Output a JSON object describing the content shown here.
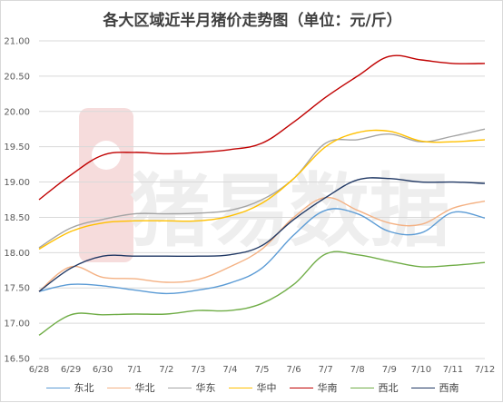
{
  "chart_data": {
    "type": "line",
    "title": "各大区域近半月猪价走势图（单位：元/斤）",
    "watermark": "猪易数据",
    "categories": [
      "6/28",
      "6/29",
      "6/30",
      "7/1",
      "7/2",
      "7/3",
      "7/4",
      "7/5",
      "7/6",
      "7/7",
      "7/8",
      "7/9",
      "7/10",
      "7/11",
      "7/12"
    ],
    "ylim": [
      16.5,
      21.0
    ],
    "yticks": [
      "16.50",
      "17.00",
      "17.50",
      "18.00",
      "18.50",
      "19.00",
      "19.50",
      "20.00",
      "20.50",
      "21.00"
    ],
    "grid": true,
    "legend_position": "bottom",
    "series": [
      {
        "name": "东北",
        "color": "#5b9bd5",
        "values": [
          17.45,
          17.55,
          17.53,
          17.47,
          17.42,
          17.47,
          17.57,
          17.78,
          18.25,
          18.6,
          18.55,
          18.3,
          18.28,
          18.57,
          18.49
        ]
      },
      {
        "name": "华北",
        "color": "#f4b183",
        "values": [
          17.45,
          17.8,
          17.65,
          17.63,
          17.58,
          17.62,
          17.8,
          18.05,
          18.5,
          18.78,
          18.6,
          18.42,
          18.4,
          18.63,
          18.73
        ]
      },
      {
        "name": "华东",
        "color": "#a5a5a5",
        "values": [
          18.07,
          18.35,
          18.47,
          18.55,
          18.55,
          18.56,
          18.6,
          18.75,
          19.05,
          19.55,
          19.6,
          19.68,
          19.57,
          19.65,
          19.75
        ]
      },
      {
        "name": "华中",
        "color": "#ffc000",
        "values": [
          18.05,
          18.3,
          18.42,
          18.45,
          18.45,
          18.45,
          18.52,
          18.7,
          19.05,
          19.5,
          19.7,
          19.72,
          19.58,
          19.57,
          19.6
        ]
      },
      {
        "name": "华南",
        "color": "#c00000",
        "values": [
          18.75,
          19.1,
          19.38,
          19.42,
          19.4,
          19.42,
          19.46,
          19.55,
          19.85,
          20.2,
          20.5,
          20.78,
          20.73,
          20.68,
          20.68
        ]
      },
      {
        "name": "西北",
        "color": "#70ad47",
        "values": [
          16.83,
          17.12,
          17.12,
          17.13,
          17.13,
          17.18,
          17.18,
          17.28,
          17.55,
          17.98,
          17.97,
          17.88,
          17.8,
          17.82,
          17.86
        ]
      },
      {
        "name": "西南",
        "color": "#203864",
        "values": [
          17.45,
          17.78,
          17.95,
          17.95,
          17.95,
          17.95,
          17.97,
          18.1,
          18.47,
          18.78,
          19.03,
          19.05,
          19.0,
          19.0,
          18.98
        ]
      }
    ]
  }
}
